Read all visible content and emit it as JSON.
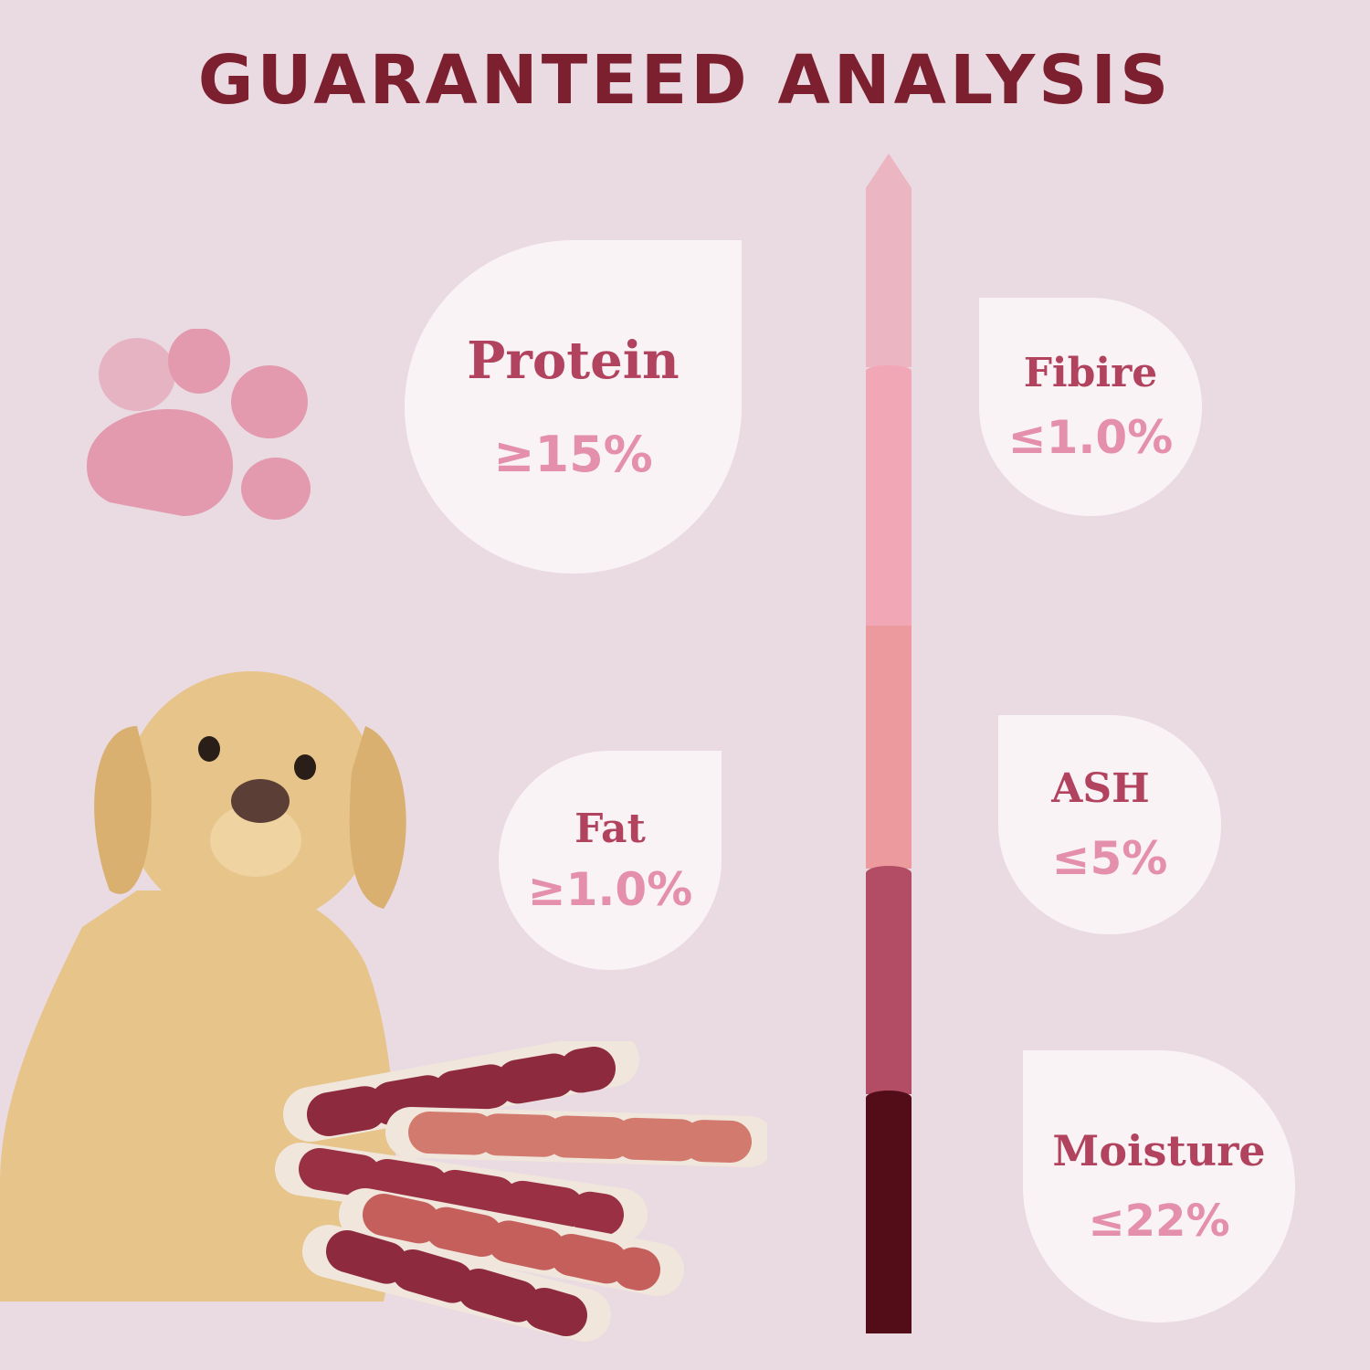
{
  "title": "GUARANTEED ANALYSIS",
  "nutrients": [
    {
      "label": "Protein",
      "value": "≥15%"
    },
    {
      "label": "Fibire",
      "value": "≤1.0%"
    },
    {
      "label": "Fat",
      "value": "≥1.0%"
    },
    {
      "label": "ASH",
      "value": "≤5%"
    },
    {
      "label": "Moisture",
      "value": "≤22%"
    }
  ],
  "colors": {
    "background": "#eadae2",
    "title": "#7c2030",
    "label": "#b1435f",
    "value": "#e48fab",
    "bar_segments": [
      "#ebb5c1",
      "#f2a7b6",
      "#ec9a9e",
      "#b34d66",
      "#520d18"
    ]
  },
  "images": [
    "paw-print",
    "golden-retriever-dog",
    "duck-wrapped-rawhide-sticks"
  ]
}
